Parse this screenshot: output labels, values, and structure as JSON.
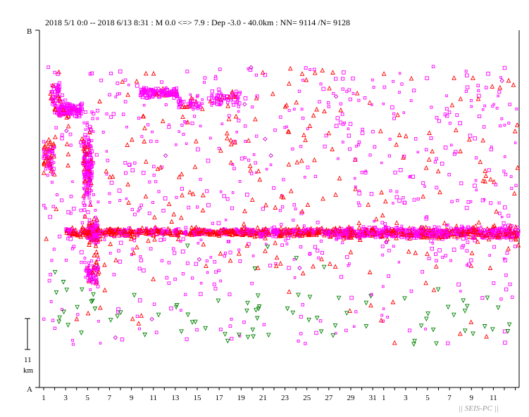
{
  "chart_data": {
    "type": "scatter",
    "title": "2018 5/1 0:0 -- 2018 6/13 8:31  : M 0.0 <=> 7.9   :  Dep -3.0 - 40.0km :  NN= 9114 /N= 9128",
    "y_top_label": "B",
    "y_bottom_label": "A",
    "scale_bar": {
      "value_label": "11",
      "unit_label": "km"
    },
    "watermark": "|| SEIS-PC ||",
    "xlim_days": [
      0,
      43.35
    ],
    "x_tick_labels": [
      {
        "day": 0,
        "label": "1"
      },
      {
        "day": 2,
        "label": "3"
      },
      {
        "day": 4,
        "label": "5"
      },
      {
        "day": 6,
        "label": "7"
      },
      {
        "day": 8,
        "label": "9"
      },
      {
        "day": 10,
        "label": "11"
      },
      {
        "day": 12,
        "label": "13"
      },
      {
        "day": 14,
        "label": "15"
      },
      {
        "day": 16,
        "label": "17"
      },
      {
        "day": 18,
        "label": "19"
      },
      {
        "day": 20,
        "label": "21"
      },
      {
        "day": 22,
        "label": "23"
      },
      {
        "day": 24,
        "label": "25"
      },
      {
        "day": 26,
        "label": "27"
      },
      {
        "day": 28,
        "label": "29"
      },
      {
        "day": 30,
        "label": "31"
      },
      {
        "day": 31,
        "label": "1"
      },
      {
        "day": 33,
        "label": "3"
      },
      {
        "day": 35,
        "label": "5"
      },
      {
        "day": 37,
        "label": "7"
      },
      {
        "day": 39,
        "label": "9"
      },
      {
        "day": 41,
        "label": "11"
      }
    ],
    "marker_colors": {
      "square": "#ff00ff",
      "triangle_up": "#ff0000",
      "triangle_down": "#008000",
      "diamond": "#cc00cc"
    },
    "grid": false,
    "legend": "none"
  }
}
